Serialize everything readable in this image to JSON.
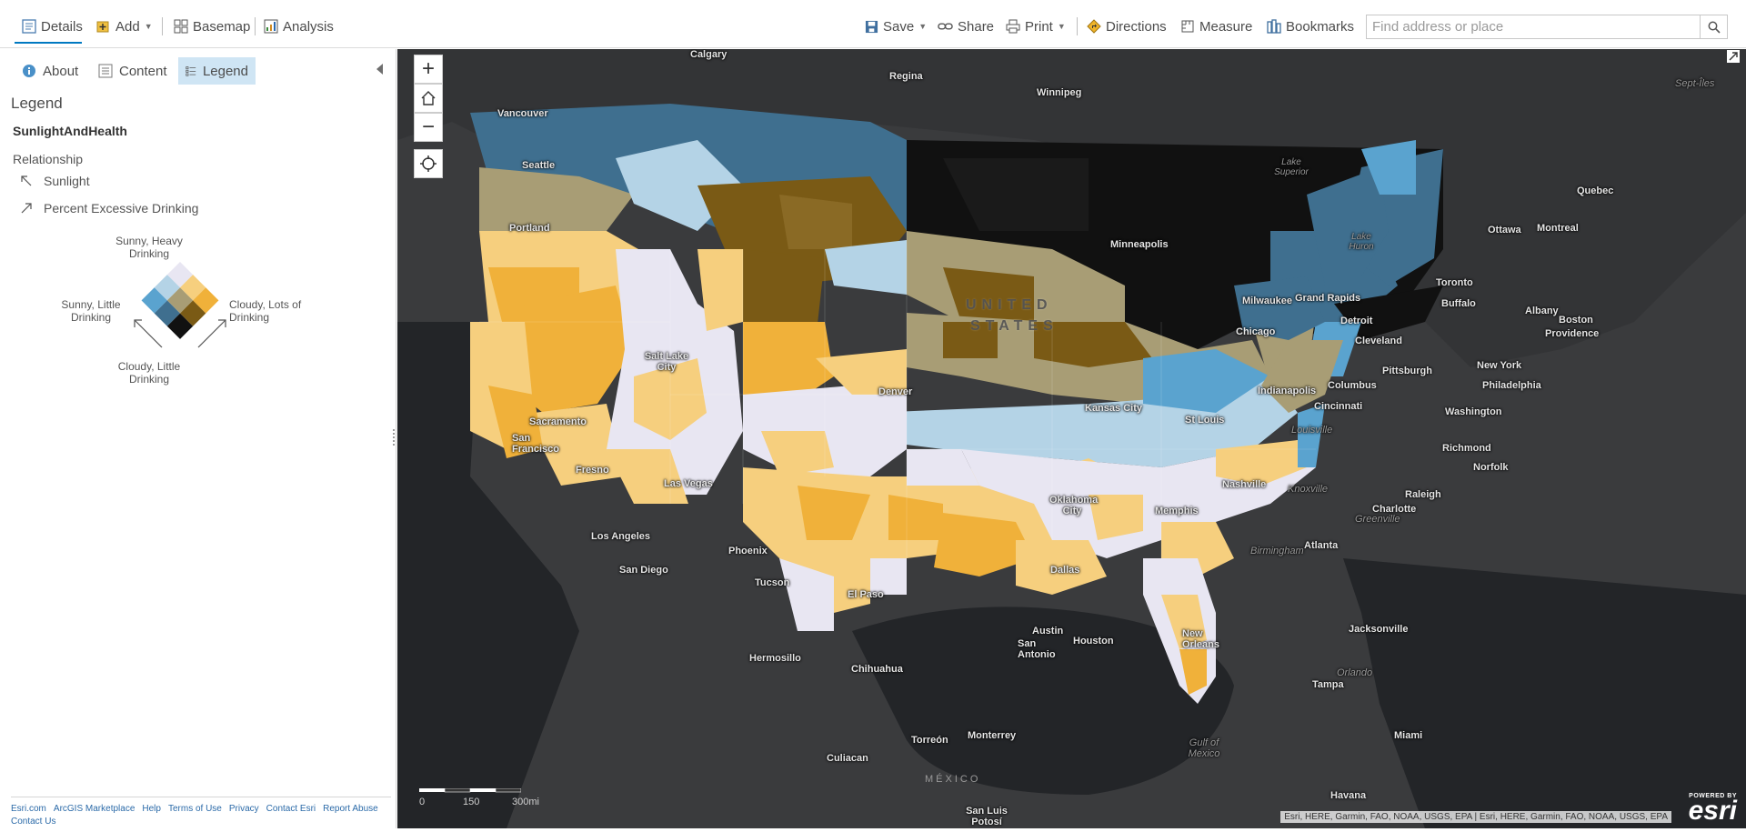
{
  "toolbar": {
    "details": "Details",
    "add": "Add",
    "basemap": "Basemap",
    "analysis": "Analysis",
    "save": "Save",
    "share": "Share",
    "print": "Print",
    "directions": "Directions",
    "measure": "Measure",
    "bookmarks": "Bookmarks",
    "search_placeholder": "Find address or place"
  },
  "panel": {
    "tabs": [
      {
        "label": "About"
      },
      {
        "label": "Content"
      },
      {
        "label": "Legend",
        "active": true
      }
    ],
    "heading": "Legend",
    "layer_title": "SunlightAndHealth",
    "relationship_label": "Relationship",
    "fields": [
      "Sunlight",
      "Percent Excessive Drinking"
    ],
    "diamond_labels": {
      "top": "Sunny, Heavy Drinking",
      "left": "Sunny, Little Drinking",
      "right": "Cloudy, Lots of Drinking",
      "bottom": "Cloudy, Little Drinking"
    },
    "grid_colors": [
      [
        "#e8e6f2",
        "#f6cf7e",
        "#f0b13a"
      ],
      [
        "#b4d3e6",
        "#a89d75",
        "#7a5a15"
      ],
      [
        "#5aa3cf",
        "#3f6f8f",
        "#111111"
      ]
    ],
    "footer_links": [
      "Esri.com",
      "ArcGIS Marketplace",
      "Help",
      "Terms of Use",
      "Privacy",
      "Contact Esri",
      "Report Abuse",
      "Contact Us"
    ]
  },
  "map": {
    "zoom_in": "+",
    "zoom_out": "−",
    "country_label_1": "UNITED",
    "country_label_2": "STATES",
    "mexico_label": "MÉXICO",
    "gulf_label": "Gulf of Mexico",
    "cities": [
      "Calgary",
      "Regina",
      "Winnipeg",
      "Vancouver",
      "Seattle",
      "Portland",
      "Minneapolis",
      "Quebec",
      "Ottawa",
      "Montreal",
      "Sept-Îles",
      "Toronto",
      "Buffalo",
      "Albany",
      "Boston",
      "Providence",
      "Milwaukee",
      "Grand Rapids",
      "Detroit",
      "Chicago",
      "Cleveland",
      "Pittsburgh",
      "New York",
      "Philadelphia",
      "Indianapolis",
      "Columbus",
      "Cincinnati",
      "Washington",
      "Richmond",
      "Norfolk",
      "Salt Lake City",
      "Denver",
      "Kansas City",
      "St Louis",
      "Louisville",
      "Nashville",
      "Knoxville",
      "Raleigh",
      "Charlotte",
      "Greenville",
      "Memphis",
      "Atlanta",
      "Birmingham",
      "Sacramento",
      "San Francisco",
      "Fresno",
      "Las Vegas",
      "Los Angeles",
      "San Diego",
      "Phoenix",
      "Tucson",
      "El Paso",
      "Oklahoma City",
      "Dallas",
      "Austin",
      "San Antonio",
      "Houston",
      "New Orleans",
      "Jacksonville",
      "Orlando",
      "Tampa",
      "Miami",
      "Hermosillo",
      "Chihuahua",
      "Torreón",
      "Monterrey",
      "Culiacan",
      "San Luis Potosí",
      "Havana",
      "Lake Superior",
      "Lake Huron"
    ],
    "scale": [
      "0",
      "150",
      "300mi"
    ],
    "attribution": "Esri, HERE, Garmin, FAO, NOAA, USGS, EPA | Esri, HERE, Garmin, FAO, NOAA, USGS, EPA",
    "powered_by": "POWERED BY",
    "esri": "esri"
  }
}
